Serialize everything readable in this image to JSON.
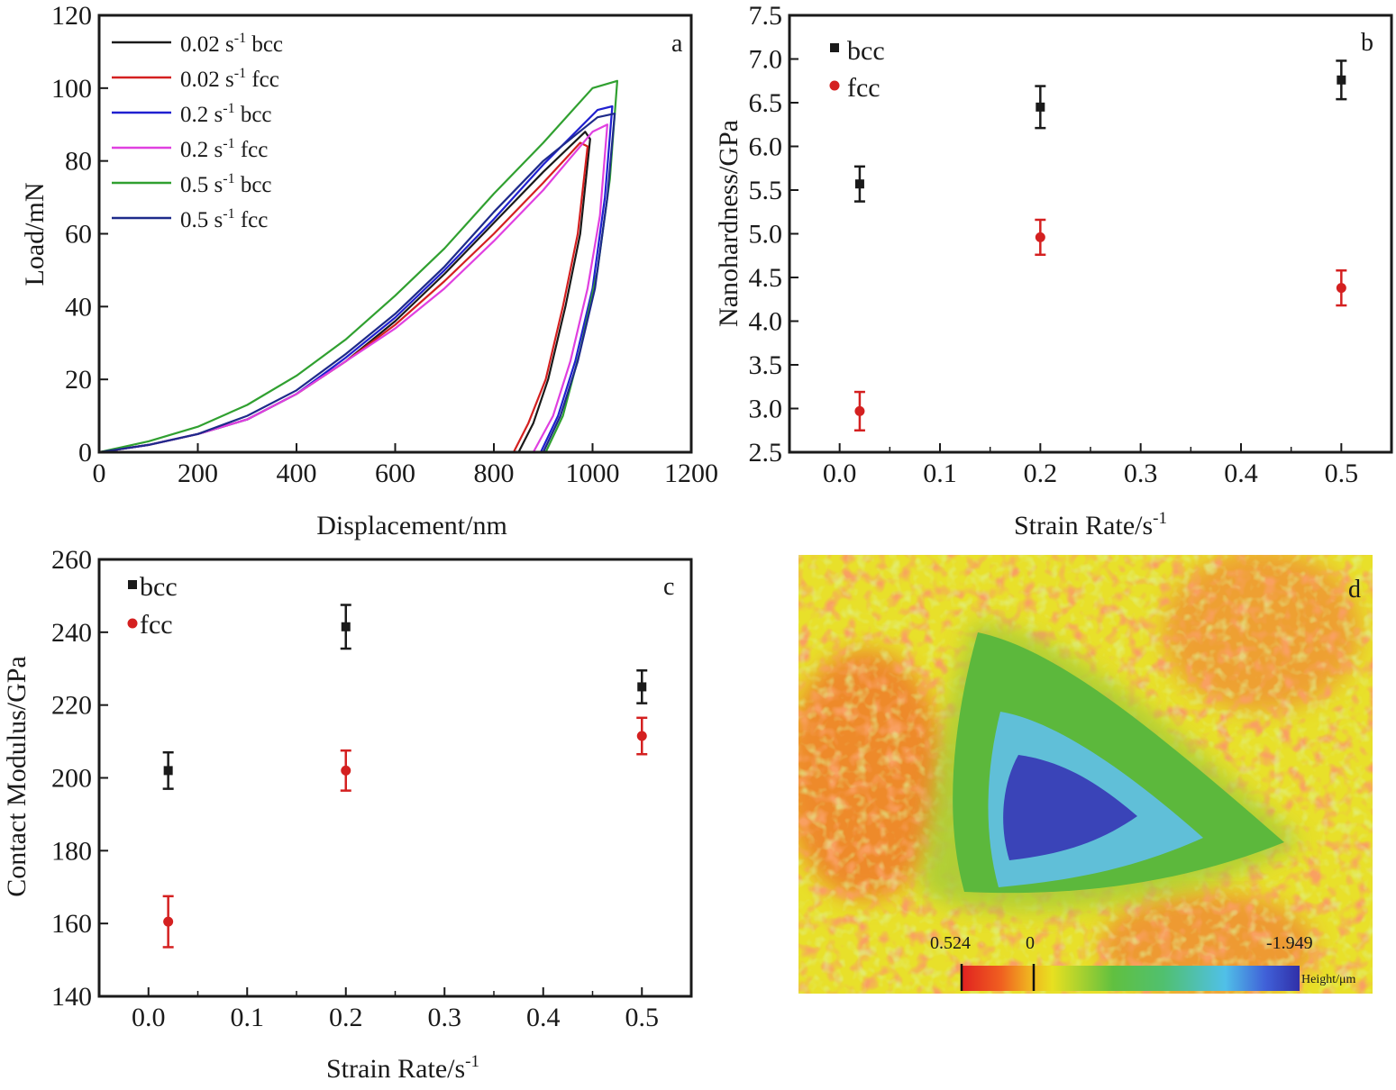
{
  "colors": {
    "black": "#1a1a1a",
    "red": "#d42020",
    "blue": "#2020d0",
    "magenta": "#e040e0",
    "green": "#30a030",
    "navy": "#1e2a8a"
  },
  "panel_a": {
    "letter": "a",
    "legend": [
      {
        "text": "0.02 s",
        "sup": "-1",
        "tail": "bcc"
      },
      {
        "text": "0.02 s",
        "sup": "-1",
        "tail": "fcc"
      },
      {
        "text": "0.2 s",
        "sup": "-1",
        "tail": "bcc"
      },
      {
        "text": "0.2 s",
        "sup": "-1",
        "tail": "fcc"
      },
      {
        "text": "0.5 s",
        "sup": "-1",
        "tail": "bcc"
      },
      {
        "text": "0.5 s",
        "sup": "-1",
        "tail": "fcc"
      }
    ]
  },
  "panel_b": {
    "letter": "b"
  },
  "panel_c": {
    "letter": "c"
  },
  "panel_d": {
    "letter": "d",
    "scale_max": "0.524",
    "scale_zero": "0",
    "scale_min": "-1.949",
    "scale_label": "Height/μm"
  },
  "chart_data": [
    {
      "type": "line",
      "panel": "a",
      "xlabel": "Displacement/nm",
      "ylabel": "Load/mN",
      "xlim": [
        0,
        1200
      ],
      "ylim": [
        0,
        120
      ],
      "xticks": [
        0,
        200,
        400,
        600,
        800,
        1000,
        1200
      ],
      "yticks": [
        0,
        20,
        40,
        60,
        80,
        100,
        120
      ],
      "series": [
        {
          "name": "0.02 s-1 bcc",
          "color": "#1a1a1a",
          "loading": [
            [
              0,
              0
            ],
            [
              100,
              2
            ],
            [
              200,
              5
            ],
            [
              300,
              9
            ],
            [
              400,
              16
            ],
            [
              500,
              25
            ],
            [
              600,
              36
            ],
            [
              700,
              49
            ],
            [
              800,
              63
            ],
            [
              900,
              77
            ],
            [
              985,
              88
            ]
          ],
          "hold": [
            [
              985,
              88
            ],
            [
              995,
              86
            ]
          ],
          "unloading": [
            [
              995,
              86
            ],
            [
              975,
              60
            ],
            [
              945,
              40
            ],
            [
              910,
              20
            ],
            [
              880,
              8
            ],
            [
              850,
              0
            ]
          ]
        },
        {
          "name": "0.02 s-1 fcc",
          "color": "#d42020",
          "loading": [
            [
              0,
              0
            ],
            [
              100,
              2
            ],
            [
              200,
              5
            ],
            [
              300,
              9
            ],
            [
              400,
              16
            ],
            [
              500,
              25
            ],
            [
              600,
              35
            ],
            [
              700,
              47
            ],
            [
              800,
              60
            ],
            [
              900,
              74
            ],
            [
              975,
              85
            ]
          ],
          "hold": [
            [
              975,
              85
            ],
            [
              990,
              84
            ]
          ],
          "unloading": [
            [
              990,
              84
            ],
            [
              970,
              60
            ],
            [
              940,
              40
            ],
            [
              905,
              20
            ],
            [
              870,
              8
            ],
            [
              840,
              0
            ]
          ]
        },
        {
          "name": "0.2 s-1 bcc",
          "color": "#2020d0",
          "loading": [
            [
              0,
              0
            ],
            [
              100,
              2
            ],
            [
              200,
              5
            ],
            [
              300,
              9
            ],
            [
              400,
              16
            ],
            [
              500,
              26
            ],
            [
              600,
              37
            ],
            [
              700,
              50
            ],
            [
              800,
              64
            ],
            [
              900,
              79
            ],
            [
              1010,
              94
            ]
          ],
          "hold": [
            [
              1010,
              94
            ],
            [
              1040,
              95
            ]
          ],
          "unloading": [
            [
              1040,
              95
            ],
            [
              1025,
              70
            ],
            [
              1000,
              45
            ],
            [
              965,
              25
            ],
            [
              930,
              10
            ],
            [
              895,
              0
            ]
          ]
        },
        {
          "name": "0.2 s-1 fcc",
          "color": "#e040e0",
          "loading": [
            [
              0,
              0
            ],
            [
              100,
              2
            ],
            [
              200,
              5
            ],
            [
              300,
              9
            ],
            [
              400,
              16
            ],
            [
              500,
              25
            ],
            [
              600,
              34
            ],
            [
              700,
              45
            ],
            [
              800,
              58
            ],
            [
              900,
              72
            ],
            [
              1000,
              88
            ]
          ],
          "hold": [
            [
              1000,
              88
            ],
            [
              1030,
              90
            ]
          ],
          "unloading": [
            [
              1030,
              90
            ],
            [
              1015,
              65
            ],
            [
              990,
              45
            ],
            [
              955,
              25
            ],
            [
              920,
              10
            ],
            [
              880,
              0
            ]
          ]
        },
        {
          "name": "0.5 s-1 bcc",
          "color": "#30a030",
          "loading": [
            [
              0,
              0
            ],
            [
              100,
              3
            ],
            [
              200,
              7
            ],
            [
              300,
              13
            ],
            [
              400,
              21
            ],
            [
              500,
              31
            ],
            [
              600,
              43
            ],
            [
              700,
              56
            ],
            [
              800,
              71
            ],
            [
              900,
              85
            ],
            [
              1000,
              100
            ]
          ],
          "hold": [
            [
              1000,
              100
            ],
            [
              1050,
              102
            ]
          ],
          "unloading": [
            [
              1050,
              102
            ],
            [
              1035,
              75
            ],
            [
              1010,
              50
            ],
            [
              975,
              28
            ],
            [
              940,
              10
            ],
            [
              905,
              0
            ]
          ]
        },
        {
          "name": "0.5 s-1 fcc",
          "color": "#1e2a8a",
          "loading": [
            [
              0,
              0
            ],
            [
              100,
              2
            ],
            [
              200,
              5
            ],
            [
              300,
              10
            ],
            [
              400,
              17
            ],
            [
              500,
              27
            ],
            [
              600,
              38
            ],
            [
              700,
              51
            ],
            [
              800,
              66
            ],
            [
              900,
              80
            ],
            [
              1010,
              92
            ]
          ],
          "hold": [
            [
              1010,
              92
            ],
            [
              1045,
              93
            ]
          ],
          "unloading": [
            [
              1045,
              93
            ],
            [
              1030,
              70
            ],
            [
              1005,
              45
            ],
            [
              970,
              25
            ],
            [
              935,
              10
            ],
            [
              900,
              0
            ]
          ]
        }
      ]
    },
    {
      "type": "scatter",
      "panel": "b",
      "xlabel": "Strain Rate/s",
      "xlabel_sup": "-1",
      "ylabel": "Nanohardness/GPa",
      "xlim": [
        -0.05,
        0.55
      ],
      "ylim": [
        2.5,
        7.5
      ],
      "xticks": [
        "0.0",
        "0.1",
        "0.2",
        "0.3",
        "0.4",
        "0.5"
      ],
      "yticks": [
        "2.5",
        "3.0",
        "3.5",
        "4.0",
        "4.5",
        "5.0",
        "5.5",
        "6.0",
        "6.5",
        "7.0",
        "7.5"
      ],
      "series": [
        {
          "name": "bcc",
          "marker": "square",
          "color": "#1a1a1a",
          "x": [
            0.02,
            0.2,
            0.5
          ],
          "y": [
            5.57,
            6.45,
            6.76
          ],
          "err": [
            0.2,
            0.24,
            0.22
          ]
        },
        {
          "name": "fcc",
          "marker": "circle",
          "color": "#d42020",
          "x": [
            0.02,
            0.2,
            0.5
          ],
          "y": [
            2.97,
            4.96,
            4.38
          ],
          "err": [
            0.22,
            0.2,
            0.2
          ]
        }
      ]
    },
    {
      "type": "scatter",
      "panel": "c",
      "xlabel": "Strain Rate/s",
      "xlabel_sup": "-1",
      "ylabel": "Contact Modulus/GPa",
      "xlim": [
        -0.05,
        0.55
      ],
      "ylim": [
        140,
        260
      ],
      "xticks": [
        "0.0",
        "0.1",
        "0.2",
        "0.3",
        "0.4",
        "0.5"
      ],
      "yticks": [
        "140",
        "160",
        "180",
        "200",
        "220",
        "240",
        "260"
      ],
      "series": [
        {
          "name": "bcc",
          "marker": "square",
          "color": "#1a1a1a",
          "x": [
            0.02,
            0.2,
            0.5
          ],
          "y": [
            202,
            241.5,
            225
          ],
          "err": [
            5,
            6,
            4.5
          ]
        },
        {
          "name": "fcc",
          "marker": "circle",
          "color": "#d42020",
          "x": [
            0.02,
            0.2,
            0.5
          ],
          "y": [
            160.5,
            202,
            211.5
          ],
          "err": [
            7,
            5.5,
            5
          ]
        }
      ]
    }
  ]
}
